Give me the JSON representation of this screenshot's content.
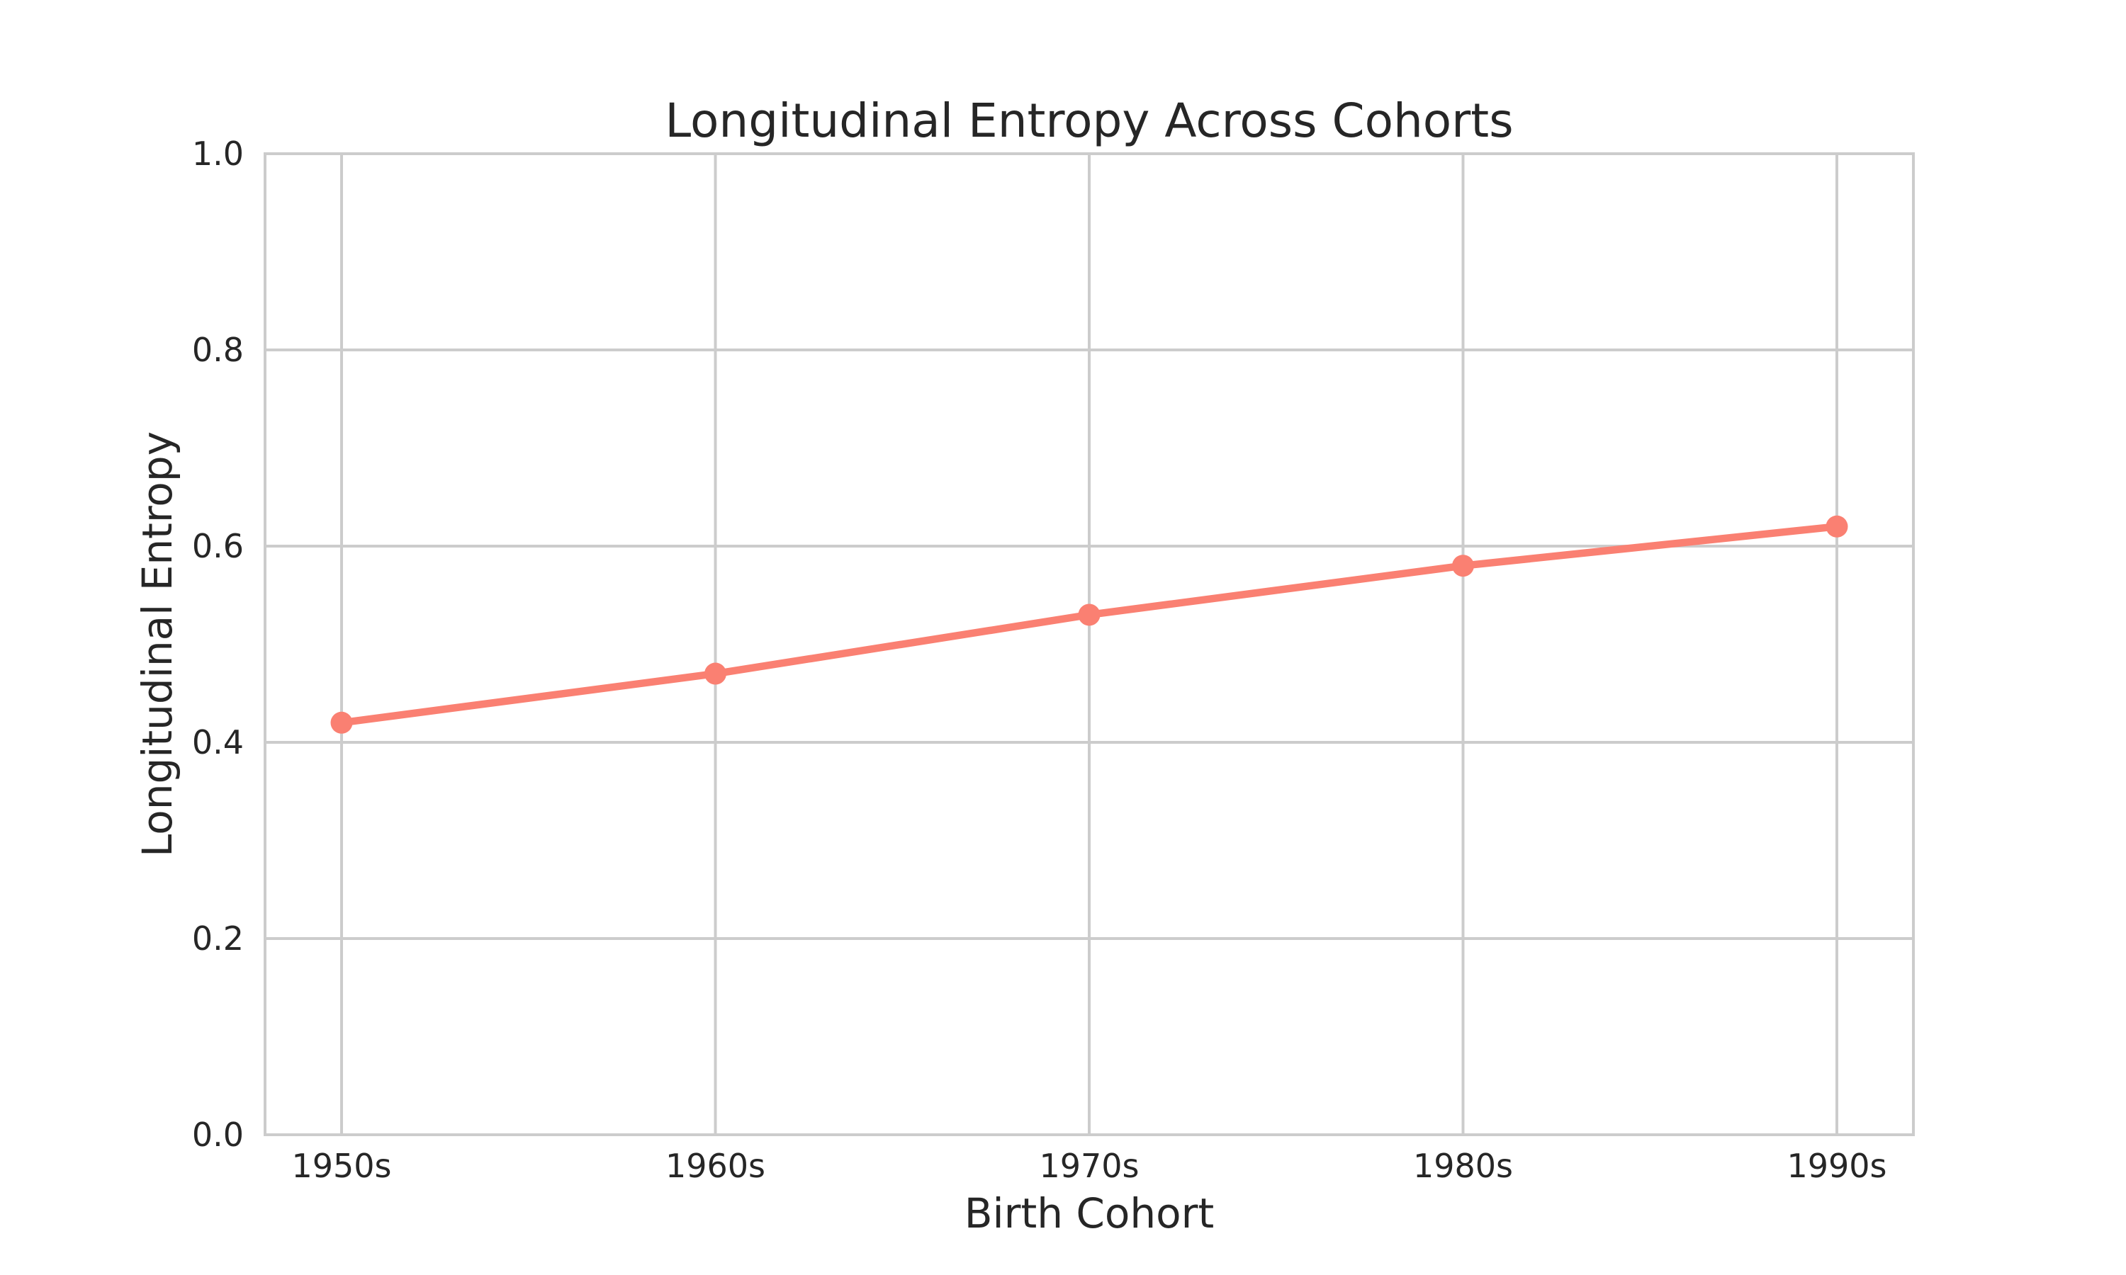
{
  "chart_data": {
    "type": "line",
    "title": "Longitudinal Entropy Across Cohorts",
    "xlabel": "Birth Cohort",
    "ylabel": "Longitudinal Entropy",
    "categories": [
      "1950s",
      "1960s",
      "1970s",
      "1980s",
      "1990s"
    ],
    "series": [
      {
        "name": "Longitudinal Entropy",
        "values": [
          0.42,
          0.47,
          0.53,
          0.58,
          0.62
        ]
      }
    ],
    "ylim": [
      0.0,
      1.0
    ],
    "yticks": [
      0.0,
      0.2,
      0.4,
      0.6,
      0.8,
      1.0
    ],
    "ytick_labels": [
      "0.0",
      "0.2",
      "0.4",
      "0.6",
      "0.8",
      "1.0"
    ],
    "grid": true,
    "legend_position": "none",
    "colors": {
      "line": "#FA8072",
      "marker": "#FA8072",
      "grid": "#CCCCCC",
      "spine": "#CCCCCC",
      "text": "#262626",
      "background": "#FFFFFF"
    }
  }
}
